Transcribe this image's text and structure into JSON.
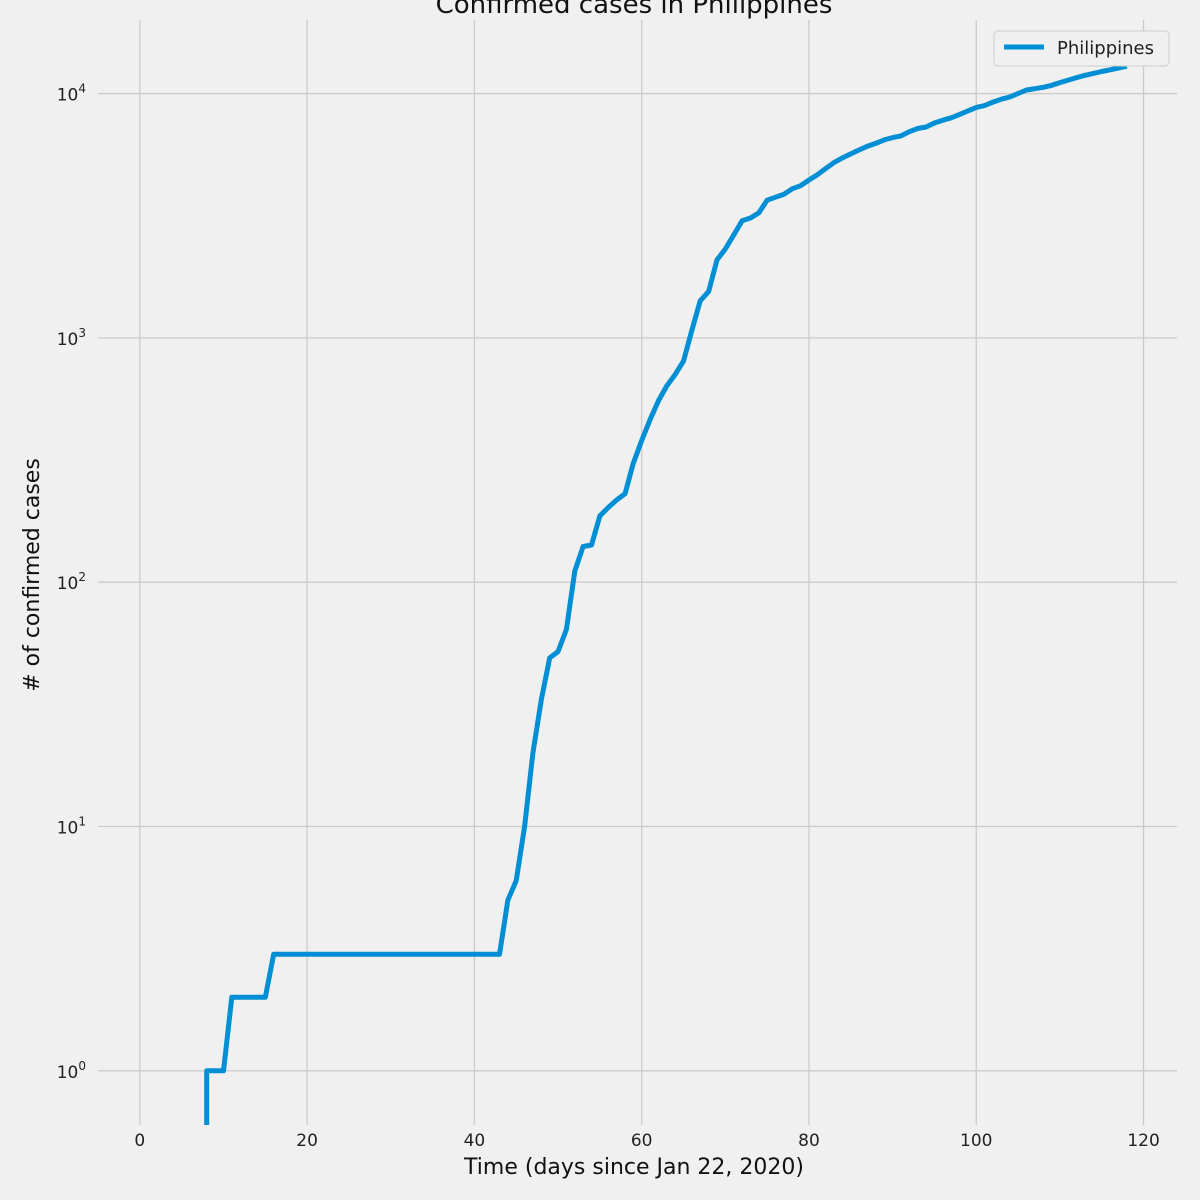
{
  "chart_data": {
    "type": "line",
    "title": "Confirmed cases in Philippines",
    "xlabel": "Time (days since Jan 22, 2020)",
    "ylabel": "# of confirmed cases",
    "yscale": "log",
    "xlim": [
      -5,
      124
    ],
    "ylim": [
      0.6,
      20000
    ],
    "grid": true,
    "legend_position": "top-right",
    "x_ticks": [
      0,
      20,
      40,
      60,
      80,
      100,
      120
    ],
    "x_tick_labels": [
      "0",
      "20",
      "40",
      "60",
      "80",
      "100",
      "120"
    ],
    "y_ticks": [
      1,
      10,
      100,
      1000,
      10000
    ],
    "y_tick_labels": [
      {
        "base": "10",
        "exp": "0"
      },
      {
        "base": "10",
        "exp": "1"
      },
      {
        "base": "10",
        "exp": "2"
      },
      {
        "base": "10",
        "exp": "3"
      },
      {
        "base": "10",
        "exp": "4"
      }
    ],
    "series": [
      {
        "name": "Philippines",
        "color": "#008fd5",
        "x": [
          8,
          8,
          10,
          11,
          15,
          16,
          43,
          44,
          45,
          46,
          47,
          48,
          49,
          50,
          51,
          52,
          53,
          54,
          55,
          56,
          57,
          58,
          59,
          60,
          61,
          62,
          63,
          64,
          65,
          66,
          67,
          68,
          69,
          70,
          71,
          72,
          73,
          74,
          75,
          76,
          77,
          78,
          79,
          80,
          81,
          82,
          83,
          84,
          85,
          86,
          87,
          88,
          89,
          90,
          91,
          92,
          93,
          94,
          95,
          96,
          97,
          98,
          99,
          100,
          101,
          102,
          103,
          104,
          105,
          106,
          107,
          108,
          109,
          110,
          111,
          112,
          113,
          114,
          115,
          116,
          117,
          118
        ],
        "values": [
          0.6,
          1,
          1,
          2,
          2,
          3,
          3,
          5,
          6,
          10,
          20,
          33,
          49,
          52,
          64,
          111,
          140,
          142,
          187,
          202,
          217,
          230,
          307,
          380,
          462,
          552,
          636,
          707,
          803,
          1075,
          1418,
          1546,
          2084,
          2311,
          2633,
          3018,
          3094,
          3246,
          3660,
          3764,
          3870,
          4076,
          4195,
          4428,
          4648,
          4932,
          5223,
          5453,
          5660,
          5878,
          6087,
          6259,
          6459,
          6599,
          6710,
          6981,
          7192,
          7294,
          7579,
          7777,
          7958,
          8212,
          8488,
          8772,
          8928,
          9223,
          9485,
          9684,
          10004,
          10343,
          10463,
          10610,
          10794,
          11086,
          11350,
          11618,
          11876,
          12091,
          12305,
          12513,
          12718,
          12942
        ]
      }
    ]
  }
}
